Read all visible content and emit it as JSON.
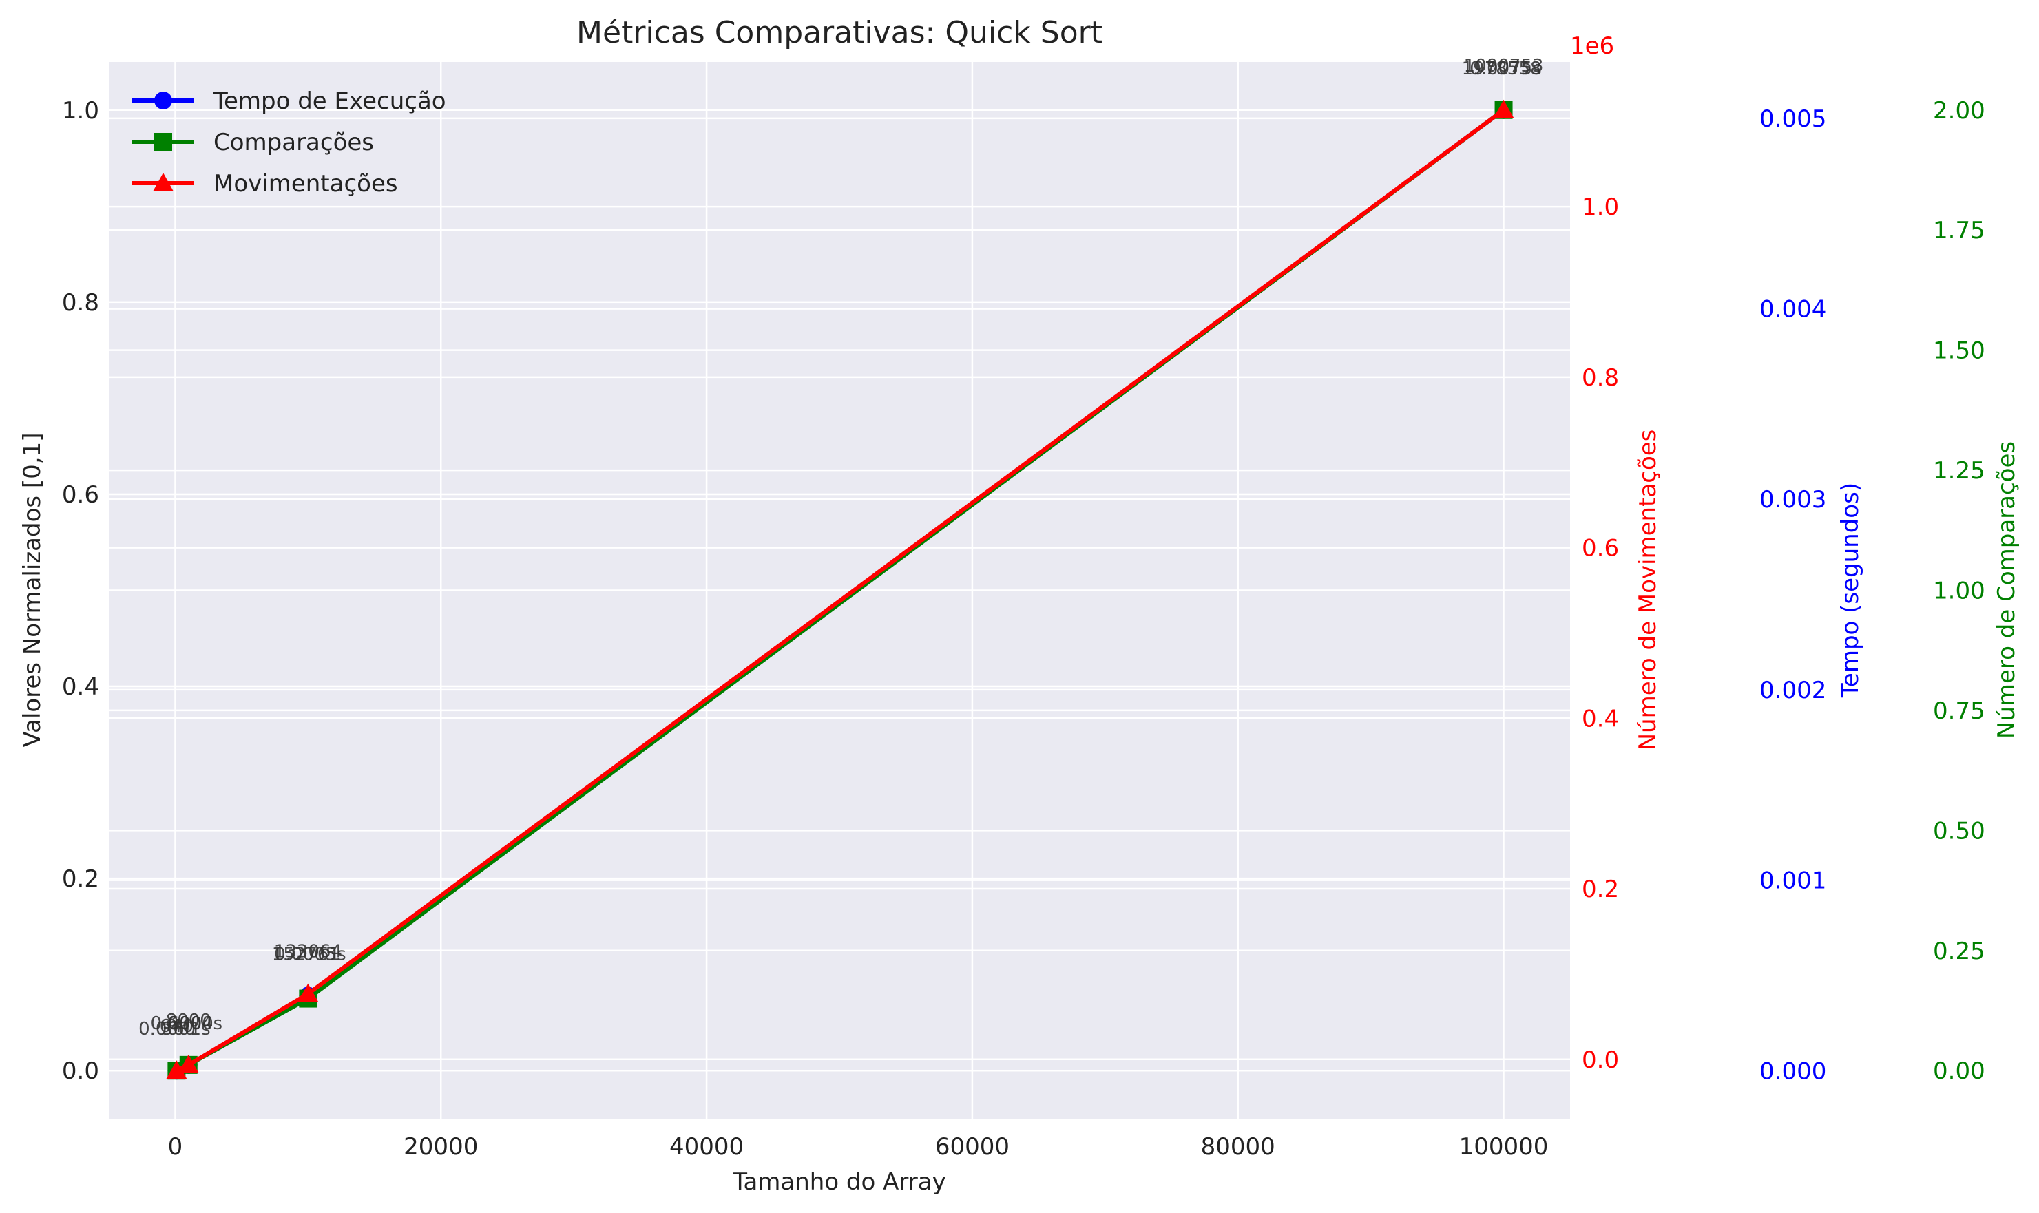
{
  "chart_data": {
    "type": "line",
    "title": "Métricas Comparativas: Quick Sort",
    "xlabel": "Tamanho do Array",
    "ylabel": "Valores Normalizados [0,1]",
    "xlim": [
      -5000,
      105000
    ],
    "ylim": [
      -0.05,
      1.05
    ],
    "grid": true,
    "legend_position": "top-left",
    "x": [
      100,
      1000,
      10000,
      100000
    ],
    "x_ticks": [
      {
        "value": 0,
        "label": "0"
      },
      {
        "value": 20000,
        "label": "20000"
      },
      {
        "value": 40000,
        "label": "40000"
      },
      {
        "value": 60000,
        "label": "60000"
      },
      {
        "value": 80000,
        "label": "80000"
      },
      {
        "value": 100000,
        "label": "100000"
      }
    ],
    "y_ticks": [
      {
        "value": 0.0,
        "label": "0.0"
      },
      {
        "value": 0.2,
        "label": "0.2"
      },
      {
        "value": 0.4,
        "label": "0.4"
      },
      {
        "value": 0.6,
        "label": "0.6"
      },
      {
        "value": 0.8,
        "label": "0.8"
      },
      {
        "value": 1.0,
        "label": "1.0"
      }
    ],
    "series": [
      {
        "name": "Tempo de Execução",
        "color": "#0000ff",
        "marker": "circle",
        "values": [
          0.0,
          0.006,
          0.078,
          1.0
        ]
      },
      {
        "name": "Comparações",
        "color": "#008000",
        "marker": "square",
        "values": [
          0.0,
          0.006,
          0.075,
          1.0
        ]
      },
      {
        "name": "Movimentações",
        "color": "#ff0000",
        "marker": "triangle",
        "values": [
          0.0,
          0.006,
          0.08,
          1.0
        ]
      }
    ],
    "annotations": [
      {
        "x": 100,
        "y": 0.0,
        "texts": [
          "0.0001s",
          "640",
          "360"
        ]
      },
      {
        "x": 1000,
        "y": 0.006,
        "texts": [
          "0.0004s",
          "8000",
          "6000"
        ]
      },
      {
        "x": 10000,
        "y": 0.078,
        "texts": [
          "152761",
          "133064",
          "0.0005s"
        ]
      },
      {
        "x": 100000,
        "y": 1.0,
        "texts": [
          "1978558",
          "1090753",
          "0.0075s"
        ]
      }
    ],
    "secondary_axes": [
      {
        "label": "Número de Movimentações",
        "color": "#ff0000",
        "offset_text": "1e6",
        "ylim": [
          -0.0696,
          1.1696
        ],
        "ticks": [
          {
            "value": 0.0,
            "label": "0.0"
          },
          {
            "value": 0.2,
            "label": "0.2"
          },
          {
            "value": 0.4,
            "label": "0.4"
          },
          {
            "value": 0.6,
            "label": "0.6"
          },
          {
            "value": 0.8,
            "label": "0.8"
          },
          {
            "value": 1.0,
            "label": "1.0"
          }
        ]
      },
      {
        "label": "Tempo (segundos)",
        "color": "#0000ff",
        "ylim": [
          -0.000252,
          0.005296
        ],
        "ticks": [
          {
            "value": 0.0,
            "label": "0.000"
          },
          {
            "value": 0.001,
            "label": "0.001"
          },
          {
            "value": 0.002,
            "label": "0.002"
          },
          {
            "value": 0.003,
            "label": "0.003"
          },
          {
            "value": 0.004,
            "label": "0.004"
          },
          {
            "value": 0.005,
            "label": "0.005"
          }
        ]
      },
      {
        "label": "Número de Comparações",
        "color": "#008000",
        "ylim": [
          -0.1,
          2.1
        ],
        "ticks": [
          {
            "value": 0.0,
            "label": "0.00"
          },
          {
            "value": 0.25,
            "label": "0.25"
          },
          {
            "value": 0.5,
            "label": "0.50"
          },
          {
            "value": 0.75,
            "label": "0.75"
          },
          {
            "value": 1.0,
            "label": "1.00"
          },
          {
            "value": 1.25,
            "label": "1.25"
          },
          {
            "value": 1.5,
            "label": "1.50"
          },
          {
            "value": 1.75,
            "label": "1.75"
          },
          {
            "value": 2.0,
            "label": "2.00"
          }
        ]
      }
    ]
  }
}
